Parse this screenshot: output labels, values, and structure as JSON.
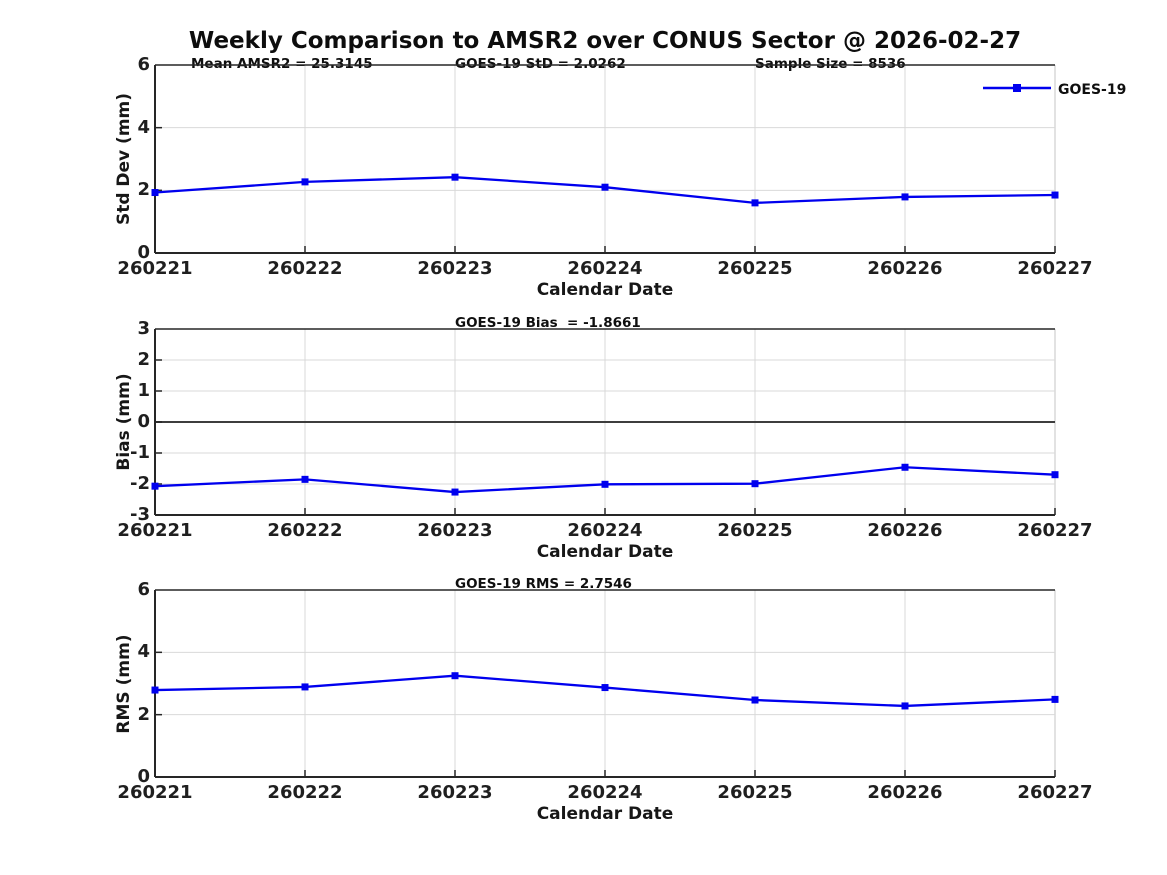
{
  "figure": {
    "title": "Weekly Comparison to AMSR2 over CONUS Sector @ 2026-02-27",
    "legend": {
      "label": "GOES-19",
      "line_color": "#0000EE",
      "marker": "square"
    }
  },
  "colors": {
    "series_blue": "#0000EE",
    "grid": "#d9d9d9",
    "axis": "#262626",
    "zero_line": "#3d3d3d"
  },
  "chart_data": [
    {
      "type": "line",
      "panel": "stddev",
      "categories": [
        "260221",
        "260222",
        "260223",
        "260224",
        "260225",
        "260226",
        "260227"
      ],
      "series": [
        {
          "name": "GOES-19",
          "color": "#0000EE",
          "marker": "square",
          "values": [
            1.93,
            2.27,
            2.42,
            2.1,
            1.6,
            1.79,
            1.85
          ]
        }
      ],
      "annotations": [
        {
          "text": "Mean AMSR2 = 25.3145"
        },
        {
          "text": "GOES-19 StD = 2.0262"
        },
        {
          "text": "Sample Size = 8536"
        }
      ],
      "xlabel": "Calendar Date",
      "ylabel": "Std Dev (mm)",
      "ylim": [
        0,
        6
      ],
      "yticks": [
        0,
        2,
        4,
        6
      ],
      "grid": true,
      "zero_line": false,
      "legend_position": "top-right-outside"
    },
    {
      "type": "line",
      "panel": "bias",
      "categories": [
        "260221",
        "260222",
        "260223",
        "260224",
        "260225",
        "260226",
        "260227"
      ],
      "series": [
        {
          "name": "GOES-19",
          "color": "#0000EE",
          "marker": "square",
          "values": [
            -2.07,
            -1.85,
            -2.26,
            -2.01,
            -1.99,
            -1.46,
            -1.7
          ]
        }
      ],
      "annotations": [
        {
          "text": "GOES-19 Bias  = -1.8661"
        }
      ],
      "xlabel": "Calendar Date",
      "ylabel": "Bias (mm)",
      "ylim": [
        -3,
        3
      ],
      "yticks": [
        -3,
        -2,
        -1,
        0,
        1,
        2,
        3
      ],
      "grid": true,
      "zero_line": true,
      "legend_position": "none"
    },
    {
      "type": "line",
      "panel": "rms",
      "categories": [
        "260221",
        "260222",
        "260223",
        "260224",
        "260225",
        "260226",
        "260227"
      ],
      "series": [
        {
          "name": "GOES-19",
          "color": "#0000EE",
          "marker": "square",
          "values": [
            2.79,
            2.89,
            3.25,
            2.87,
            2.47,
            2.28,
            2.49
          ]
        }
      ],
      "annotations": [
        {
          "text": "GOES-19 RMS = 2.7546"
        }
      ],
      "xlabel": "Calendar Date",
      "ylabel": "RMS (mm)",
      "ylim": [
        0,
        6
      ],
      "yticks": [
        0,
        2,
        4,
        6
      ],
      "grid": true,
      "zero_line": false,
      "legend_position": "none"
    }
  ]
}
